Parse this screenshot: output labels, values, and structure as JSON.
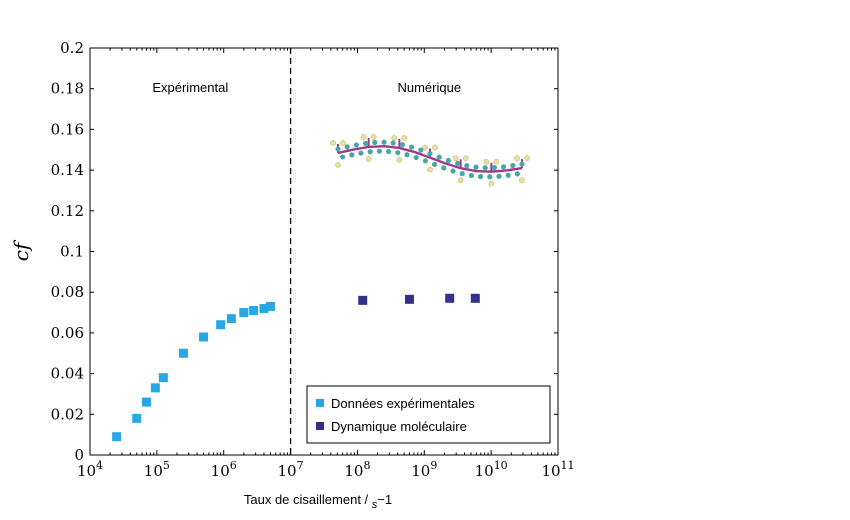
{
  "chart_data": {
    "type": "scatter",
    "xlabel": "Taux de cisaillement / s−1",
    "ylabel": "cf",
    "x_scale": "log",
    "xlim": [
      10000,
      100000000000
    ],
    "ylim": [
      0,
      0.2
    ],
    "x_ticks": [
      {
        "value": 10000,
        "base": "10",
        "exp": "4"
      },
      {
        "value": 100000,
        "base": "10",
        "exp": "5"
      },
      {
        "value": 1000000,
        "base": "10",
        "exp": "6"
      },
      {
        "value": 10000000,
        "base": "10",
        "exp": "7"
      },
      {
        "value": 100000000,
        "base": "10",
        "exp": "8"
      },
      {
        "value": 1000000000,
        "base": "10",
        "exp": "9"
      },
      {
        "value": 10000000000,
        "base": "10",
        "exp": "10"
      },
      {
        "value": 100000000000,
        "base": "10",
        "exp": "11"
      }
    ],
    "y_ticks": [
      "0",
      "0.02",
      "0.04",
      "0.06",
      "0.08",
      "0.1",
      "0.12",
      "0.14",
      "0.16",
      "0.18",
      "0.2"
    ],
    "grid": false,
    "divider_x": 10000000,
    "region_labels": [
      "Expérimental",
      "Numérique"
    ],
    "legend_position": "bottom-right",
    "series": [
      {
        "name": "Données expérimentales",
        "color": "#29a6e4",
        "marker": "square",
        "points": [
          [
            25000,
            0.009
          ],
          [
            50000,
            0.018
          ],
          [
            70000,
            0.026
          ],
          [
            95000,
            0.033
          ],
          [
            125000,
            0.038
          ],
          [
            250000,
            0.05
          ],
          [
            500000,
            0.058
          ],
          [
            900000,
            0.064
          ],
          [
            1300000,
            0.067
          ],
          [
            2000000,
            0.07
          ],
          [
            2800000,
            0.071
          ],
          [
            4000000,
            0.072
          ],
          [
            5000000,
            0.073
          ]
        ]
      },
      {
        "name": "Dynamique moléculaire",
        "color": "#32308a",
        "marker": "square",
        "points": [
          [
            120000000,
            0.076
          ],
          [
            600000000,
            0.0765
          ],
          [
            2400000000,
            0.077
          ],
          [
            5800000000,
            0.077
          ]
        ]
      }
    ]
  },
  "illustration": {
    "name": "molecule-chain-image",
    "bead_color": "#4aa6a3",
    "bond_color": "#9c3a8e",
    "atom_color": "#e8e0a0"
  }
}
